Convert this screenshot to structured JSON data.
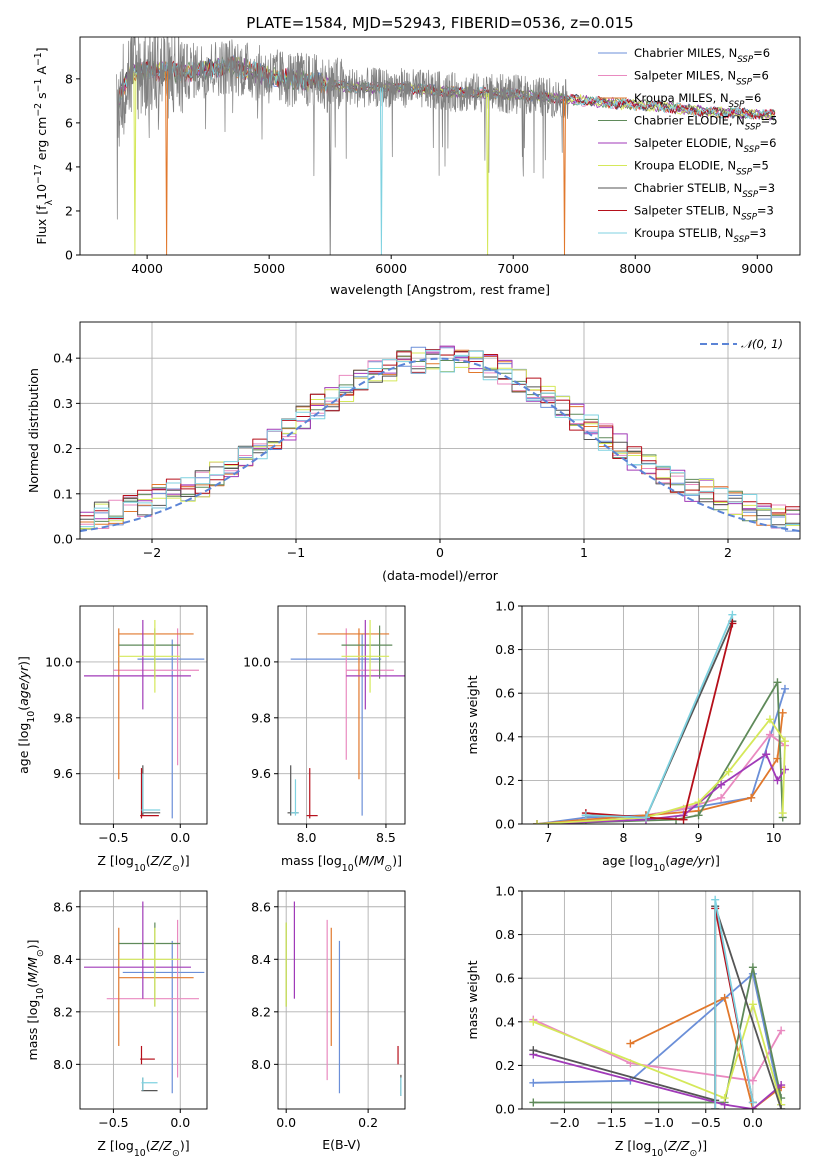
{
  "title": "PLATE=1584, MJD=52943, FIBERID=0536, z=0.015",
  "colors": {
    "Chabrier MILES": "#6b8fd8",
    "Salpeter MILES": "#e98ac0",
    "Kroupa MILES": "#e1782c",
    "Chabrier ELODIE": "#5f8a5a",
    "Salpeter ELODIE": "#a03ab8",
    "Kroupa ELODIE": "#d5e85a",
    "Chabrier STELIB": "#555555",
    "Salpeter STELIB": "#b50f1a",
    "Kroupa STELIB": "#7fd2e0",
    "data": "#808080"
  },
  "legend": [
    {
      "model": "Chabrier MILES",
      "nssp": "6"
    },
    {
      "model": "Salpeter MILES",
      "nssp": "6"
    },
    {
      "model": "Kroupa MILES",
      "nssp": "6"
    },
    {
      "model": "Chabrier ELODIE",
      "nssp": "5"
    },
    {
      "model": "Salpeter ELODIE",
      "nssp": "6"
    },
    {
      "model": "Kroupa ELODIE",
      "nssp": "5"
    },
    {
      "model": "Chabrier STELIB",
      "nssp": "3"
    },
    {
      "model": "Salpeter STELIB",
      "nssp": "3"
    },
    {
      "model": "Kroupa STELIB",
      "nssp": "3"
    }
  ],
  "chart_data": [
    {
      "id": "spectrum",
      "type": "line",
      "xlabel": "wavelength [Angstrom, rest frame]",
      "xlim": [
        3450,
        9350
      ],
      "ylim": [
        0,
        9.9
      ],
      "xticks": [
        4000,
        5000,
        6000,
        7000,
        8000,
        9000
      ],
      "yticks": [
        0,
        2,
        4,
        6,
        8
      ],
      "continuum": [
        [
          3760,
          7.0
        ],
        [
          3850,
          8.2
        ],
        [
          4000,
          8.4
        ],
        [
          4300,
          8.3
        ],
        [
          4700,
          8.6
        ],
        [
          5000,
          8.1
        ],
        [
          5300,
          7.9
        ],
        [
          5700,
          7.6
        ],
        [
          6100,
          7.6
        ],
        [
          6500,
          7.4
        ],
        [
          7000,
          7.3
        ],
        [
          7400,
          7.1
        ],
        [
          7800,
          6.9
        ],
        [
          8200,
          6.75
        ],
        [
          8600,
          6.5
        ],
        [
          9000,
          6.4
        ],
        [
          9150,
          6.35
        ]
      ],
      "data_extent": [
        3750,
        7450
      ],
      "model_extent": [
        3760,
        9150
      ],
      "dips": [
        {
          "model": "Kroupa MILES",
          "x": 4160
        },
        {
          "model": "Kroupa ELODIE",
          "x": 3900
        },
        {
          "model": "Kroupa STELIB",
          "x": 5920
        },
        {
          "model": "Kroupa ELODIE",
          "x": 6790
        },
        {
          "model": "Kroupa MILES",
          "x": 7420
        },
        {
          "model": "data",
          "x": 5500
        }
      ]
    },
    {
      "id": "residuals",
      "type": "line",
      "xlabel": "(data-model)/error",
      "ylabel": "Normed distribution",
      "xlim": [
        -2.5,
        2.5
      ],
      "ylim": [
        0,
        0.48
      ],
      "xticks": [
        -2,
        -1,
        0,
        1,
        2
      ],
      "xtick_labels": [
        "−2",
        "−1",
        "0",
        "1",
        "2"
      ],
      "yticks": [
        0.0,
        0.1,
        0.2,
        0.3,
        0.4
      ],
      "ytick_labels": [
        "0.0",
        "0.1",
        "0.2",
        "0.3",
        "0.4"
      ],
      "bin_width": 0.1,
      "gaussian": {
        "mu": 0,
        "sigma": 1,
        "label": "𝒩(0, 1)"
      }
    },
    {
      "id": "age_vs_Z",
      "type": "scatter",
      "xlabel": "Z [log10(Z/Z⊙)]",
      "ylabel": "age  [log10(age/yr)]",
      "xlim": [
        -0.75,
        0.2
      ],
      "ylim": [
        9.42,
        10.2
      ],
      "xticks": [
        -0.5,
        0.0
      ],
      "xtick_labels": [
        "−0.5",
        "0.0"
      ],
      "yticks": [
        9.6,
        9.8,
        10.0
      ],
      "ytick_labels": [
        "9.6",
        "9.8",
        "10.0"
      ],
      "points": [
        {
          "model": "Chabrier MILES",
          "x": -0.06,
          "y": 10.01,
          "xe": [
            -0.32,
            0.18
          ],
          "ye": [
            9.44,
            10.08
          ]
        },
        {
          "model": "Salpeter MILES",
          "x": -0.02,
          "y": 9.97,
          "xe": [
            -0.5,
            0.14
          ],
          "ye": [
            9.63,
            10.12
          ]
        },
        {
          "model": "Kroupa MILES",
          "x": -0.46,
          "y": 10.1,
          "xe": [
            -0.46,
            0.1
          ],
          "ye": [
            9.58,
            10.12
          ]
        },
        {
          "model": "Chabrier ELODIE",
          "x": -0.19,
          "y": 10.06,
          "xe": [
            -0.46,
            0.0
          ],
          "ye": [
            9.94,
            10.12
          ]
        },
        {
          "model": "Salpeter ELODIE",
          "x": -0.28,
          "y": 9.95,
          "xe": [
            -0.72,
            0.08
          ],
          "ye": [
            9.83,
            10.15
          ]
        },
        {
          "model": "Kroupa ELODIE",
          "x": -0.19,
          "y": 10.02,
          "xe": [
            -0.46,
            0.0
          ],
          "ye": [
            9.89,
            10.15
          ]
        },
        {
          "model": "Chabrier STELIB",
          "x": -0.28,
          "y": 9.46,
          "xe": [
            -0.29,
            -0.15
          ],
          "ye": [
            9.45,
            9.63
          ]
        },
        {
          "model": "Salpeter STELIB",
          "x": -0.29,
          "y": 9.45,
          "xe": [
            -0.3,
            -0.16
          ],
          "ye": [
            9.44,
            9.62
          ]
        },
        {
          "model": "Kroupa STELIB",
          "x": -0.28,
          "y": 9.47,
          "xe": [
            -0.29,
            -0.15
          ],
          "ye": [
            9.46,
            9.6
          ]
        }
      ]
    },
    {
      "id": "age_vs_mass",
      "type": "scatter",
      "xlabel": "mass [log10(M/M⊙)]",
      "xlim": [
        7.82,
        8.62
      ],
      "ylim": [
        9.42,
        10.2
      ],
      "xticks": [
        8.0,
        8.5
      ],
      "xtick_labels": [
        "8.0",
        "8.5"
      ],
      "yticks": [
        9.6,
        9.8,
        10.0
      ],
      "ytick_labels": [
        "9.6",
        "9.8",
        "10.0"
      ],
      "points": [
        {
          "model": "Chabrier MILES",
          "x": 8.35,
          "y": 10.01,
          "xe": [
            7.9,
            8.47
          ],
          "ye": [
            9.45,
            10.1
          ]
        },
        {
          "model": "Salpeter MILES",
          "x": 8.25,
          "y": 9.97,
          "xe": [
            8.25,
            8.55
          ],
          "ye": [
            9.65,
            10.12
          ]
        },
        {
          "model": "Kroupa MILES",
          "x": 8.33,
          "y": 10.1,
          "xe": [
            8.07,
            8.52
          ],
          "ye": [
            9.58,
            10.12
          ]
        },
        {
          "model": "Chabrier ELODIE",
          "x": 8.46,
          "y": 10.06,
          "xe": [
            8.22,
            8.54
          ],
          "ye": [
            9.94,
            10.13
          ]
        },
        {
          "model": "Salpeter ELODIE",
          "x": 8.37,
          "y": 9.95,
          "xe": [
            8.25,
            8.62
          ],
          "ye": [
            9.83,
            10.15
          ]
        },
        {
          "model": "Kroupa ELODIE",
          "x": 8.4,
          "y": 10.02,
          "xe": [
            8.22,
            8.52
          ],
          "ye": [
            9.89,
            10.15
          ]
        },
        {
          "model": "Chabrier STELIB",
          "x": 7.9,
          "y": 9.46,
          "xe": [
            7.88,
            7.95
          ],
          "ye": [
            9.45,
            9.63
          ]
        },
        {
          "model": "Salpeter STELIB",
          "x": 8.02,
          "y": 9.45,
          "xe": [
            8.0,
            8.07
          ],
          "ye": [
            9.44,
            9.62
          ]
        },
        {
          "model": "Kroupa STELIB",
          "x": 7.93,
          "y": 9.46,
          "xe": [
            7.9,
            7.95
          ],
          "ye": [
            9.45,
            9.58
          ]
        }
      ]
    },
    {
      "id": "mass_vs_Z",
      "type": "scatter",
      "xlabel": "Z [log10(Z/Z⊙)]",
      "ylabel": "mass [log10(M/M⊙)]",
      "xlim": [
        -0.75,
        0.2
      ],
      "ylim": [
        7.83,
        8.66
      ],
      "xticks": [
        -0.5,
        0.0
      ],
      "xtick_labels": [
        "−0.5",
        "0.0"
      ],
      "yticks": [
        8.0,
        8.2,
        8.4,
        8.6
      ],
      "ytick_labels": [
        "8.0",
        "8.2",
        "8.4",
        "8.6"
      ],
      "points": [
        {
          "model": "Chabrier MILES",
          "x": -0.06,
          "y": 8.35,
          "xe": [
            -0.43,
            0.18
          ],
          "ye": [
            7.89,
            8.47
          ]
        },
        {
          "model": "Salpeter MILES",
          "x": -0.02,
          "y": 8.25,
          "xe": [
            -0.55,
            0.14
          ],
          "ye": [
            7.95,
            8.55
          ]
        },
        {
          "model": "Kroupa MILES",
          "x": -0.46,
          "y": 8.33,
          "xe": [
            -0.46,
            0.1
          ],
          "ye": [
            8.07,
            8.52
          ]
        },
        {
          "model": "Chabrier ELODIE",
          "x": -0.19,
          "y": 8.46,
          "xe": [
            -0.46,
            0.0
          ],
          "ye": [
            8.22,
            8.54
          ]
        },
        {
          "model": "Salpeter ELODIE",
          "x": -0.28,
          "y": 8.37,
          "xe": [
            -0.72,
            0.08
          ],
          "ye": [
            8.25,
            8.62
          ]
        },
        {
          "model": "Kroupa ELODIE",
          "x": -0.19,
          "y": 8.4,
          "xe": [
            -0.46,
            0.0
          ],
          "ye": [
            8.22,
            8.52
          ]
        },
        {
          "model": "Chabrier STELIB",
          "x": -0.28,
          "y": 7.9,
          "xe": [
            -0.29,
            -0.17
          ],
          "ye": [
            7.9,
            7.95
          ]
        },
        {
          "model": "Salpeter STELIB",
          "x": -0.29,
          "y": 8.02,
          "xe": [
            -0.3,
            -0.19
          ],
          "ye": [
            8.0,
            8.07
          ]
        },
        {
          "model": "Kroupa STELIB",
          "x": -0.28,
          "y": 7.93,
          "xe": [
            -0.29,
            -0.17
          ],
          "ye": [
            7.9,
            7.95
          ]
        }
      ]
    },
    {
      "id": "mass_vs_ebv",
      "type": "scatter",
      "xlabel": "E(B-V)",
      "xlim": [
        -0.02,
        0.29
      ],
      "ylim": [
        7.83,
        8.66
      ],
      "xticks": [
        0.0,
        0.2
      ],
      "xtick_labels": [
        "0.0",
        "0.2"
      ],
      "yticks": [
        8.0,
        8.2,
        8.4,
        8.6
      ],
      "ytick_labels": [
        "8.0",
        "8.2",
        "8.4",
        "8.6"
      ],
      "points": [
        {
          "model": "Chabrier MILES",
          "x": 0.13,
          "y": 8.35,
          "ye": [
            7.89,
            8.47
          ]
        },
        {
          "model": "Salpeter MILES",
          "x": 0.1,
          "y": 8.25,
          "ye": [
            7.94,
            8.55
          ]
        },
        {
          "model": "Kroupa MILES",
          "x": 0.11,
          "y": 8.33,
          "ye": [
            8.07,
            8.52
          ]
        },
        {
          "model": "Chabrier ELODIE",
          "x": 0.0,
          "y": 8.46,
          "ye": [
            8.22,
            8.54
          ]
        },
        {
          "model": "Salpeter ELODIE",
          "x": 0.02,
          "y": 8.37,
          "ye": [
            8.25,
            8.62
          ]
        },
        {
          "model": "Kroupa ELODIE",
          "x": 0.0,
          "y": 8.4,
          "ye": [
            8.22,
            8.54
          ]
        },
        {
          "model": "Chabrier STELIB",
          "x": 0.28,
          "y": 7.9,
          "ye": [
            7.88,
            7.96
          ]
        },
        {
          "model": "Salpeter STELIB",
          "x": 0.273,
          "y": 8.02,
          "ye": [
            8.0,
            8.07
          ]
        },
        {
          "model": "Kroupa STELIB",
          "x": 0.28,
          "y": 7.93,
          "ye": [
            7.88,
            7.95
          ]
        }
      ]
    },
    {
      "id": "weight_vs_age",
      "type": "line",
      "xlabel": "age  [log10(age/yr)]",
      "ylabel": "mass weight",
      "xlim": [
        6.65,
        10.35
      ],
      "ylim": [
        0,
        1.0
      ],
      "xticks": [
        7,
        8,
        9,
        10
      ],
      "xtick_labels": [
        "7",
        "8",
        "9",
        "10"
      ],
      "yticks": [
        0.0,
        0.2,
        0.4,
        0.6,
        0.8,
        1.0
      ],
      "ytick_labels": [
        "0.0",
        "0.2",
        "0.4",
        "0.6",
        "0.8",
        "1.0"
      ],
      "series": [
        {
          "model": "Chabrier MILES",
          "x": [
            6.85,
            7.5,
            8.3,
            9.0,
            9.7,
            10.15
          ],
          "y": [
            0.0,
            0.03,
            0.04,
            0.08,
            0.12,
            0.62
          ]
        },
        {
          "model": "Salpeter MILES",
          "x": [
            6.85,
            7.5,
            8.3,
            8.8,
            9.3,
            9.95,
            10.15
          ],
          "y": [
            0.0,
            0.02,
            0.04,
            0.07,
            0.12,
            0.41,
            0.36
          ]
        },
        {
          "model": "Kroupa MILES",
          "x": [
            6.85,
            7.5,
            8.3,
            9.0,
            9.7,
            10.05,
            10.12
          ],
          "y": [
            0.0,
            0.02,
            0.04,
            0.06,
            0.12,
            0.3,
            0.51
          ]
        },
        {
          "model": "Chabrier ELODIE",
          "x": [
            6.85,
            8.7,
            9.0,
            10.05,
            10.12
          ],
          "y": [
            0.0,
            0.02,
            0.04,
            0.65,
            0.03
          ]
        },
        {
          "model": "Salpeter ELODIE",
          "x": [
            6.85,
            8.3,
            8.8,
            9.3,
            9.9,
            10.05,
            10.15
          ],
          "y": [
            0.0,
            0.02,
            0.04,
            0.18,
            0.32,
            0.2,
            0.25
          ]
        },
        {
          "model": "Kroupa ELODIE",
          "x": [
            6.85,
            8.3,
            9.0,
            9.4,
            9.95,
            10.15,
            10.12
          ],
          "y": [
            0.0,
            0.03,
            0.1,
            0.24,
            0.48,
            0.38,
            0.05
          ]
        },
        {
          "model": "Chabrier STELIB",
          "x": [
            7.5,
            8.3,
            9.45
          ],
          "y": [
            0.04,
            0.03,
            0.93
          ]
        },
        {
          "model": "Salpeter STELIB",
          "x": [
            7.5,
            8.3,
            8.8,
            9.45
          ],
          "y": [
            0.05,
            0.03,
            0.02,
            0.92
          ]
        },
        {
          "model": "Kroupa STELIB",
          "x": [
            7.5,
            8.3,
            9.45
          ],
          "y": [
            0.04,
            0.03,
            0.96
          ]
        }
      ]
    },
    {
      "id": "weight_vs_Z",
      "type": "line",
      "xlabel": "Z [log10(Z/Z⊙)]",
      "ylabel": "mass weight",
      "xlim": [
        -2.45,
        0.5
      ],
      "ylim": [
        0,
        1.0
      ],
      "xticks": [
        -2.0,
        -1.5,
        -1.0,
        -0.5,
        0.0
      ],
      "xtick_labels": [
        "−2.0",
        "−1.5",
        "−1.0",
        "−0.5",
        "0.0"
      ],
      "yticks": [
        0.0,
        0.2,
        0.4,
        0.6,
        0.8,
        1.0
      ],
      "ytick_labels": [
        "0.0",
        "0.2",
        "0.4",
        "0.6",
        "0.8",
        "1.0"
      ],
      "series": [
        {
          "model": "Chabrier MILES",
          "x": [
            -2.33,
            -1.3,
            0.0,
            0.3
          ],
          "y": [
            0.12,
            0.13,
            0.62,
            0.02
          ]
        },
        {
          "model": "Salpeter MILES",
          "x": [
            -2.33,
            -1.3,
            0.0,
            0.3
          ],
          "y": [
            0.41,
            0.21,
            0.13,
            0.36
          ]
        },
        {
          "model": "Kroupa MILES",
          "x": [
            -1.3,
            -0.3,
            0.0,
            0.3
          ],
          "y": [
            0.3,
            0.51,
            0.0,
            0.1
          ]
        },
        {
          "model": "Chabrier ELODIE",
          "x": [
            -2.33,
            -0.3,
            0.0,
            0.3
          ],
          "y": [
            0.03,
            0.03,
            0.65,
            0.05
          ]
        },
        {
          "model": "Salpeter ELODIE",
          "x": [
            -2.33,
            -0.3,
            0.0,
            0.3
          ],
          "y": [
            0.25,
            0.02,
            0.0,
            0.11
          ]
        },
        {
          "model": "Kroupa ELODIE",
          "x": [
            -2.33,
            -0.3,
            0.0,
            0.3
          ],
          "y": [
            0.4,
            0.05,
            0.48,
            0.02
          ]
        },
        {
          "model": "Chabrier STELIB",
          "x": [
            -2.33,
            -0.4,
            -0.4,
            0.3
          ],
          "y": [
            0.27,
            0.04,
            0.93,
            0.0
          ]
        },
        {
          "model": "Salpeter STELIB",
          "x": [
            -0.4,
            -0.4,
            0.0
          ],
          "y": [
            0.0,
            0.92,
            0.03
          ]
        },
        {
          "model": "Kroupa STELIB",
          "x": [
            -0.4,
            -0.4,
            0.0
          ],
          "y": [
            0.0,
            0.96,
            0.03
          ]
        }
      ]
    }
  ]
}
